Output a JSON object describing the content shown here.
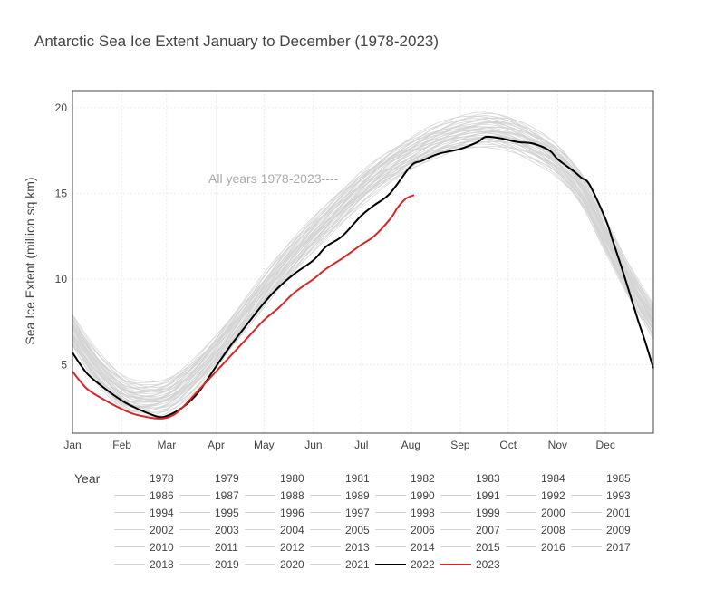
{
  "title": "Antarctic Sea Ice Extent January to December (1978-2023)",
  "colors": {
    "background_year": "#d3d3d3",
    "y2022": "#000000",
    "y2023": "#d62728",
    "annotation": "#aaaaaa"
  },
  "chart_data": {
    "type": "line",
    "title": "Antarctic Sea Ice Extent January to December (1978-2023)",
    "xlabel": "",
    "ylabel": "Sea Ice Extent (million sq km)",
    "x_tick_labels": [
      "Jan",
      "Feb",
      "Mar",
      "Apr",
      "May",
      "Jun",
      "Jul",
      "Aug",
      "Sep",
      "Oct",
      "Nov",
      "Dec"
    ],
    "y_ticks": [
      5,
      10,
      15,
      20
    ],
    "ylim": [
      1,
      21
    ],
    "grid": true,
    "legend_title": "Year",
    "legend_position": "bottom",
    "annotation": "All years 1978-2023----",
    "climatology_day_of_year": [
      1,
      15,
      32,
      45,
      60,
      75,
      91,
      106,
      121,
      136,
      152,
      167,
      182,
      197,
      213,
      228,
      244,
      259,
      274,
      289,
      305,
      320,
      335,
      350,
      365
    ],
    "climatology_extent": [
      7.0,
      5.0,
      3.4,
      3.0,
      3.2,
      4.2,
      5.8,
      7.5,
      9.3,
      11.0,
      12.6,
      14.0,
      15.3,
      16.4,
      17.3,
      18.0,
      18.5,
      18.7,
      18.5,
      17.9,
      16.9,
      15.2,
      12.5,
      9.8,
      7.5
    ],
    "series": [
      {
        "name": "1978",
        "values": []
      },
      {
        "name": "1979",
        "values": []
      },
      {
        "name": "1980",
        "values": []
      },
      {
        "name": "1981",
        "values": []
      },
      {
        "name": "1982",
        "values": []
      },
      {
        "name": "1983",
        "values": []
      },
      {
        "name": "1984",
        "values": []
      },
      {
        "name": "1985",
        "values": []
      },
      {
        "name": "1986",
        "values": []
      },
      {
        "name": "1987",
        "values": []
      },
      {
        "name": "1988",
        "values": []
      },
      {
        "name": "1989",
        "values": []
      },
      {
        "name": "1990",
        "values": []
      },
      {
        "name": "1991",
        "values": []
      },
      {
        "name": "1992",
        "values": []
      },
      {
        "name": "1993",
        "values": []
      },
      {
        "name": "1994",
        "values": []
      },
      {
        "name": "1995",
        "values": []
      },
      {
        "name": "1996",
        "values": []
      },
      {
        "name": "1997",
        "values": []
      },
      {
        "name": "1998",
        "values": []
      },
      {
        "name": "1999",
        "values": []
      },
      {
        "name": "2000",
        "values": []
      },
      {
        "name": "2001",
        "values": []
      },
      {
        "name": "2002",
        "values": []
      },
      {
        "name": "2003",
        "values": []
      },
      {
        "name": "2004",
        "values": []
      },
      {
        "name": "2005",
        "values": []
      },
      {
        "name": "2006",
        "values": []
      },
      {
        "name": "2007",
        "values": []
      },
      {
        "name": "2008",
        "values": []
      },
      {
        "name": "2009",
        "values": []
      },
      {
        "name": "2010",
        "values": []
      },
      {
        "name": "2011",
        "values": []
      },
      {
        "name": "2012",
        "values": []
      },
      {
        "name": "2013",
        "values": []
      },
      {
        "name": "2014",
        "values": []
      },
      {
        "name": "2015",
        "values": []
      },
      {
        "name": "2016",
        "values": []
      },
      {
        "name": "2017",
        "values": []
      },
      {
        "name": "2018",
        "values": []
      },
      {
        "name": "2019",
        "values": []
      },
      {
        "name": "2020",
        "values": []
      },
      {
        "name": "2021",
        "values": []
      },
      {
        "name": "2022",
        "day_of_year": [
          1,
          10,
          20,
          32,
          40,
          50,
          55,
          60,
          70,
          80,
          91,
          100,
          110,
          121,
          130,
          140,
          152,
          160,
          170,
          182,
          190,
          200,
          213,
          220,
          230,
          244,
          255,
          260,
          270,
          280,
          290,
          300,
          305,
          315,
          320,
          325,
          335,
          340,
          345,
          350,
          355,
          360,
          365
        ],
        "values": [
          5.7,
          4.5,
          3.7,
          2.9,
          2.5,
          2.1,
          1.95,
          2.0,
          2.5,
          3.4,
          4.9,
          6.1,
          7.3,
          8.6,
          9.5,
          10.3,
          11.1,
          11.9,
          12.5,
          13.7,
          14.3,
          15.0,
          16.6,
          16.9,
          17.3,
          17.6,
          18.0,
          18.3,
          18.2,
          18.0,
          17.9,
          17.5,
          17.0,
          16.3,
          15.9,
          15.5,
          13.5,
          12.1,
          10.7,
          9.2,
          7.7,
          6.3,
          4.8
        ]
      },
      {
        "name": "2023",
        "day_of_year": [
          1,
          10,
          20,
          32,
          40,
          50,
          55,
          60,
          65,
          70,
          80,
          91,
          100,
          110,
          121,
          130,
          140,
          152,
          160,
          170,
          182,
          190,
          200,
          205,
          210,
          215
        ],
        "values": [
          4.6,
          3.6,
          3.0,
          2.4,
          2.1,
          1.9,
          1.85,
          1.9,
          2.1,
          2.5,
          3.5,
          4.6,
          5.5,
          6.5,
          7.6,
          8.3,
          9.2,
          10.0,
          10.6,
          11.2,
          12.0,
          12.5,
          13.5,
          14.2,
          14.7,
          14.9
        ]
      }
    ]
  },
  "legend_order": [
    "1978",
    "1979",
    "1980",
    "1981",
    "1982",
    "1983",
    "1984",
    "1985",
    "1986",
    "1987",
    "1988",
    "1989",
    "1990",
    "1991",
    "1992",
    "1993",
    "1994",
    "1995",
    "1996",
    "1997",
    "1998",
    "1999",
    "2000",
    "2001",
    "2002",
    "2003",
    "2004",
    "2005",
    "2006",
    "2007",
    "2008",
    "2009",
    "2010",
    "2011",
    "2012",
    "2013",
    "2014",
    "2015",
    "2016",
    "2017",
    "2018",
    "2019",
    "2020",
    "2021",
    "2022",
    "2023"
  ]
}
